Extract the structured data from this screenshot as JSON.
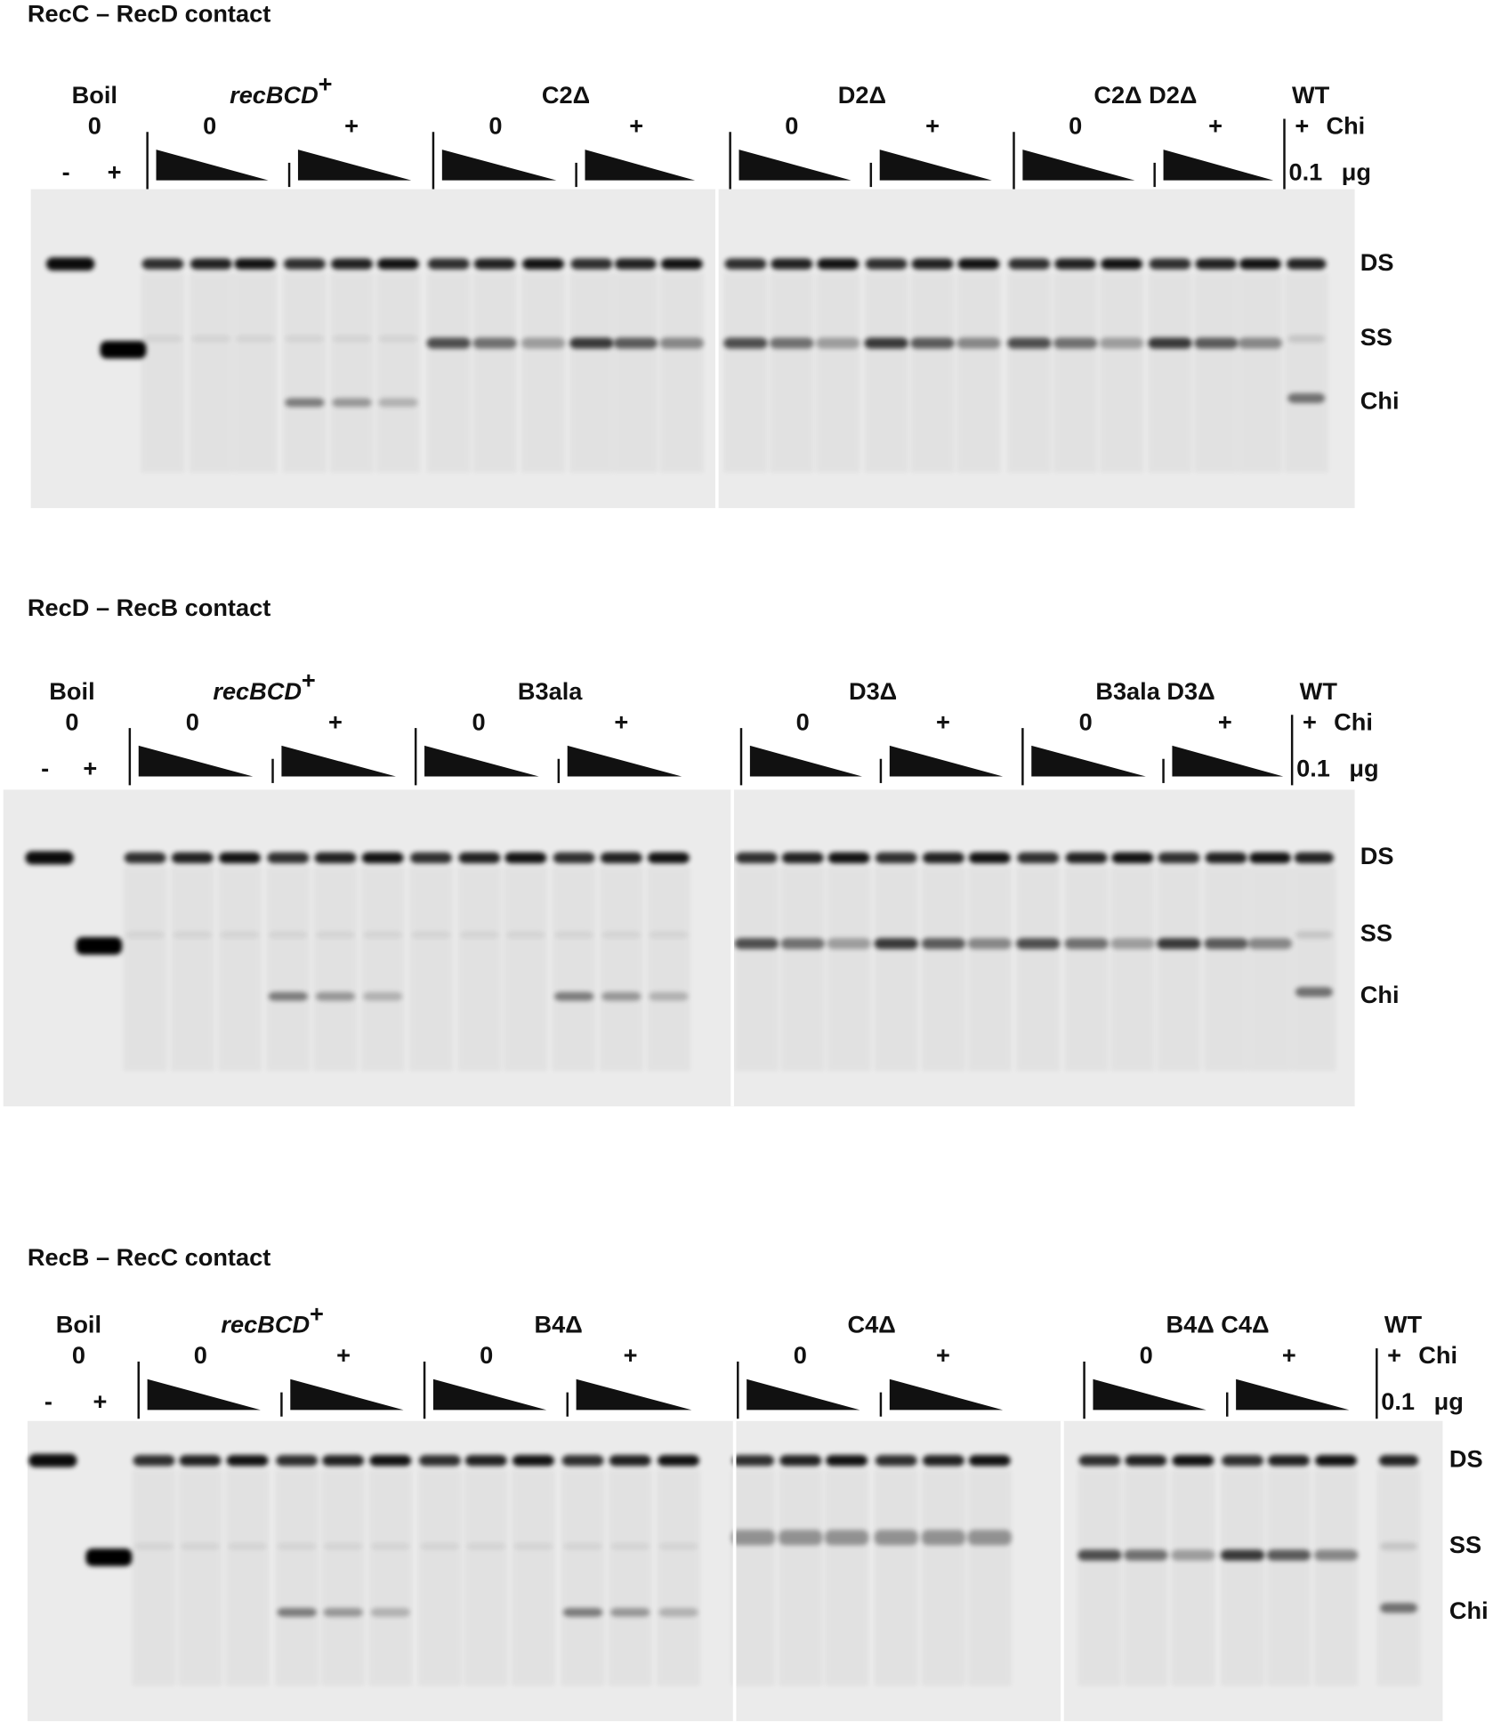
{
  "panels": [
    {
      "title": "RecC – RecD contact",
      "boil": {
        "label": "Boil",
        "chi": "0",
        "lanes": [
          "-",
          "+"
        ]
      },
      "groups": [
        {
          "label": "recBCD",
          "sup": "+",
          "chi": [
            "0",
            "+"
          ]
        },
        {
          "label": "C2Δ",
          "chi": [
            "0",
            "+"
          ]
        },
        {
          "label": "D2Δ",
          "chi": [
            "0",
            "+"
          ]
        },
        {
          "label": "C2Δ D2Δ",
          "chi": [
            "0",
            "+"
          ]
        }
      ],
      "wt": {
        "label": "WT",
        "chi": "+",
        "amount": "0.1"
      },
      "chi_label": "Chi",
      "unit": "μg",
      "bands": [
        "DS",
        "SS",
        "Chi"
      ]
    },
    {
      "title": "RecD – RecB contact",
      "boil": {
        "label": "Boil",
        "chi": "0",
        "lanes": [
          "-",
          "+"
        ]
      },
      "groups": [
        {
          "label": "recBCD",
          "sup": "+",
          "chi": [
            "0",
            "+"
          ]
        },
        {
          "label": "B3ala",
          "chi": [
            "0",
            "+"
          ]
        },
        {
          "label": "D3Δ",
          "chi": [
            "0",
            "+"
          ]
        },
        {
          "label": "B3ala D3Δ",
          "chi": [
            "0",
            "+"
          ]
        }
      ],
      "wt": {
        "label": "WT",
        "chi": "+",
        "amount": "0.1"
      },
      "chi_label": "Chi",
      "unit": "μg",
      "bands": [
        "DS",
        "SS",
        "Chi"
      ]
    },
    {
      "title": "RecB – RecC contact",
      "boil": {
        "label": "Boil",
        "chi": "0",
        "lanes": [
          "-",
          "+"
        ]
      },
      "groups": [
        {
          "label": "recBCD",
          "sup": "+",
          "chi": [
            "0",
            "+"
          ]
        },
        {
          "label": "B4Δ",
          "chi": [
            "0",
            "+"
          ]
        },
        {
          "label": "C4Δ",
          "chi": [
            "0",
            "+"
          ]
        },
        {
          "label": "B4Δ C4Δ",
          "chi": [
            "0",
            "+"
          ]
        }
      ],
      "wt": {
        "label": "WT",
        "chi": "+",
        "amount": "0.1"
      },
      "chi_label": "Chi",
      "unit": "μg",
      "bands": [
        "DS",
        "SS",
        "Chi"
      ]
    }
  ]
}
